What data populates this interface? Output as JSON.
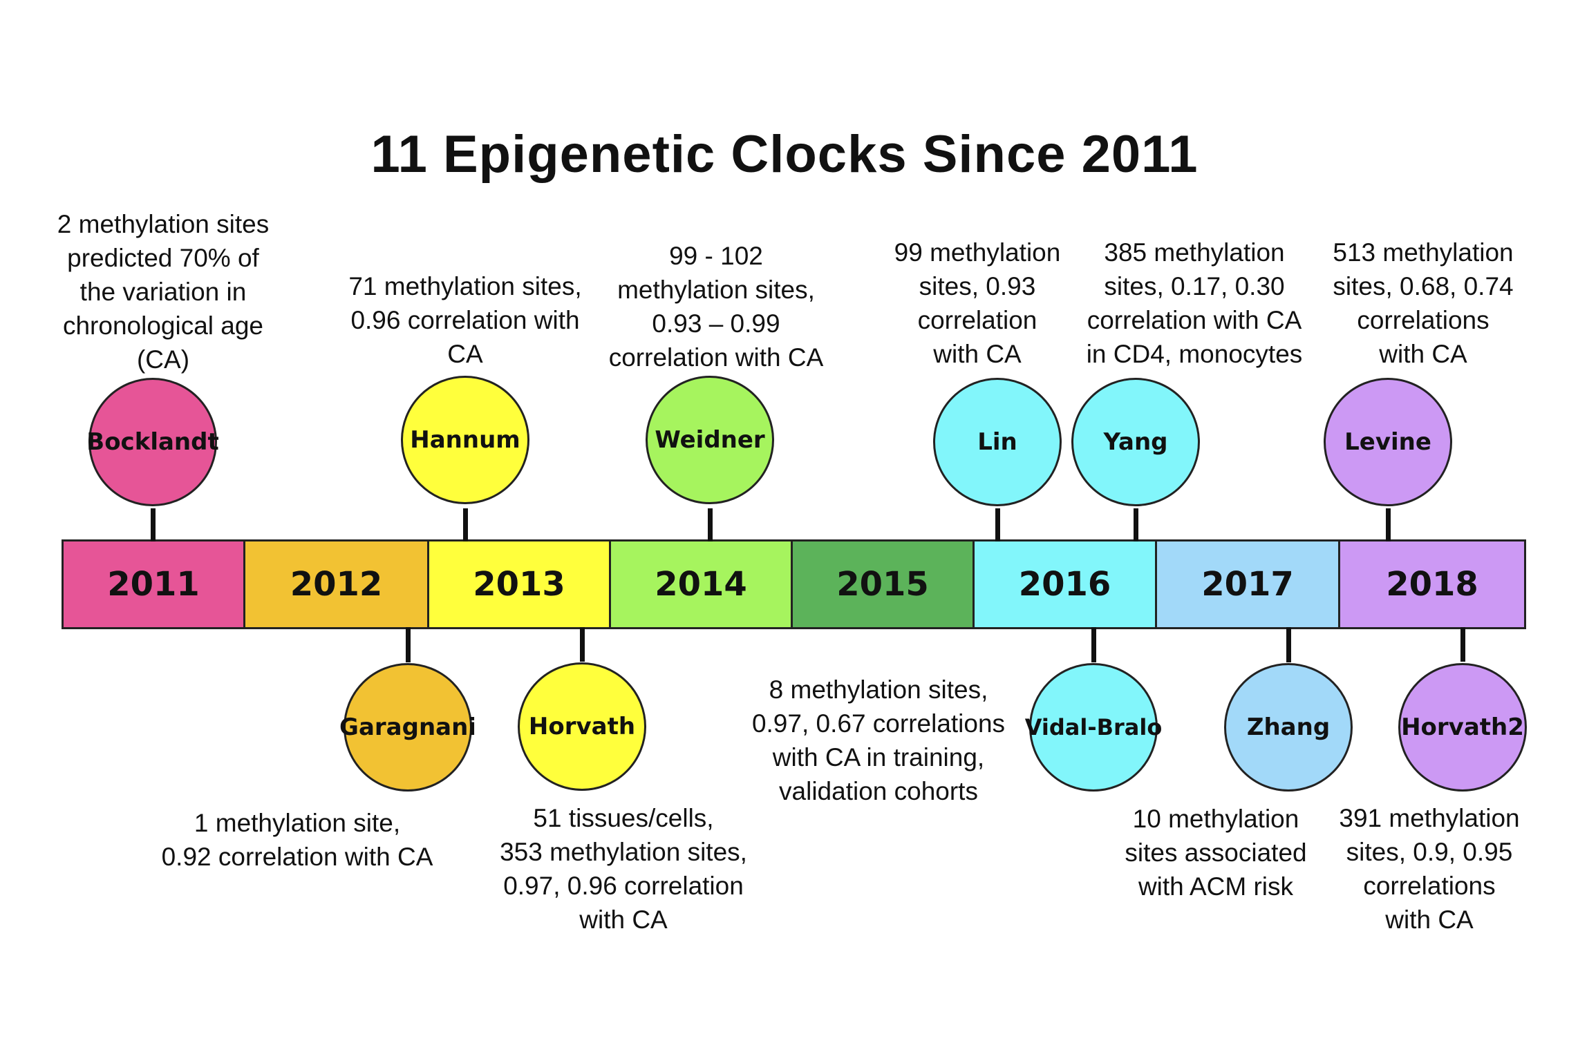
{
  "title": "11 Epigenetic Clocks Since 2011",
  "years": [
    {
      "label": "2011",
      "color": "#e65597"
    },
    {
      "label": "2012",
      "color": "#f2c233"
    },
    {
      "label": "2013",
      "color": "#ffff3c"
    },
    {
      "label": "2014",
      "color": "#a6f45e"
    },
    {
      "label": "2015",
      "color": "#5cb35a"
    },
    {
      "label": "2016",
      "color": "#82f6fb"
    },
    {
      "label": "2017",
      "color": "#a2d9f9"
    },
    {
      "label": "2018",
      "color": "#cc99f4"
    }
  ],
  "clocks": [
    {
      "name": "Bocklandt",
      "year": "2011",
      "position": "above",
      "color": "#e65597",
      "description": [
        "2 methylation sites",
        "predicted 70% of",
        "the variation in",
        "chronological age",
        "(CA)"
      ]
    },
    {
      "name": "Garagnani",
      "year": "2012",
      "position": "below",
      "color": "#f2c233",
      "description": [
        "1 methylation site,",
        "0.92 correlation with CA"
      ]
    },
    {
      "name": "Hannum",
      "year": "2013",
      "position": "above",
      "color": "#ffff3c",
      "description": [
        "71 methylation sites,",
        "0.96 correlation with",
        "CA"
      ]
    },
    {
      "name": "Horvath",
      "year": "2013",
      "position": "below",
      "color": "#ffff3c",
      "description": [
        "51 tissues/cells,",
        "353 methylation sites,",
        "0.97, 0.96 correlation",
        "with CA"
      ]
    },
    {
      "name": "Weidner",
      "year": "2014",
      "position": "above",
      "color": "#a6f45e",
      "description": [
        "99 - 102",
        "methylation sites,",
        "0.93 – 0.99",
        "correlation with CA"
      ]
    },
    {
      "name": "Lin",
      "year": "2016",
      "position": "above",
      "color": "#82f6fb",
      "description": [
        "99 methylation",
        "sites, 0.93",
        "correlation",
        "with CA"
      ]
    },
    {
      "name": "Yang",
      "year": "2016",
      "position": "above",
      "color": "#82f6fb",
      "description": [
        "385 methylation",
        "sites, 0.17, 0.30",
        "correlation with CA",
        "in CD4, monocytes"
      ]
    },
    {
      "name": "Vidal-Bralo",
      "year": "2016",
      "position": "below",
      "color": "#82f6fb",
      "description": [
        "8 methylation sites,",
        "0.97, 0.67 correlations",
        "with CA in training,",
        "validation cohorts"
      ]
    },
    {
      "name": "Zhang",
      "year": "2017",
      "position": "below",
      "color": "#a2d9f9",
      "description": [
        "10 methylation",
        "sites associated",
        "with ACM risk"
      ]
    },
    {
      "name": "Levine",
      "year": "2018",
      "position": "above",
      "color": "#cc99f4",
      "description": [
        "513 methylation",
        "sites, 0.68, 0.74",
        "correlations",
        "with CA"
      ]
    },
    {
      "name": "Horvath2",
      "year": "2018",
      "position": "below",
      "color": "#cc99f4",
      "description": [
        "391 methylation",
        "sites, 0.9, 0.95",
        "correlations",
        "with CA"
      ]
    }
  ]
}
